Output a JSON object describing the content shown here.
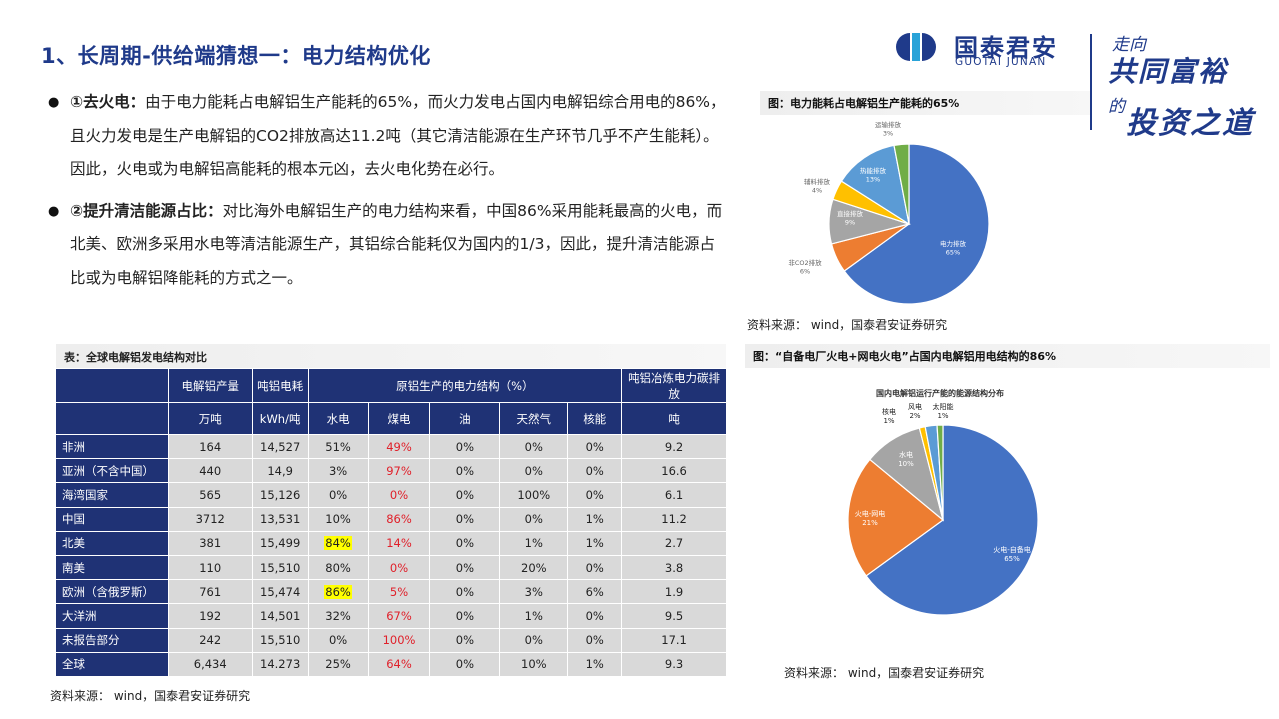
{
  "page": {
    "title": "1、长周期-供给端猜想一：电力结构优化"
  },
  "logo": {
    "name_cn": "国泰君安",
    "name_en": "GUOTAI JUNAN",
    "slogan_1": "走向",
    "slogan_2": "共同富裕",
    "slogan_3": "的",
    "slogan_4": "投资之道"
  },
  "bullets": [
    {
      "head": "①去火电：",
      "text": "由于电力能耗占电解铝生产能耗的65%，而火力发电占国内电解铝综合用电的86%，且火力发电是生产电解铝的CO2排放高达11.2吨（其它清洁能源在生产环节几乎不产生能耗）。因此，火电或为电解铝高能耗的根本元凶，去火电化势在必行。"
    },
    {
      "head": "②提升清洁能源占比：",
      "text": "对比海外电解铝生产的电力结构来看，中国86%采用能耗最高的火电，而北美、欧洲多采用水电等清洁能源生产，其铝综合能耗仅为国内的1/3，因此，提升清洁能源占比或为电解铝降能耗的方式之一。"
    }
  ],
  "figure1": {
    "caption": "图：电力能耗占电解铝生产能耗的65%",
    "source": "资料来源： wind，国泰君安证券研究"
  },
  "figure2": {
    "caption": "图：“自备电厂火电+网电火电”占国内电解铝用电结构的86%",
    "source": "资料来源： wind，国泰君安证券研究"
  },
  "table": {
    "caption": "表：全球电解铝发电结构对比",
    "source": "资料来源： wind，国泰君安证券研究",
    "headers": {
      "output": "电解铝产量",
      "consumption": "吨铝电耗",
      "structure": "原铝生产的电力结构（%）",
      "carbon": "吨铝冶炼电力碳排放",
      "unit_output": "万吨",
      "unit_consumption": "kWh/吨",
      "hydro": "水电",
      "coal": "煤电",
      "oil": "油",
      "gas": "天然气",
      "nuclear": "核能",
      "unit_carbon": "吨"
    },
    "rows": [
      {
        "region": "非洲",
        "output": "164",
        "consumption": "14,527",
        "hydro": "51%",
        "coal": "49%",
        "oil": "0%",
        "gas": "0%",
        "nuclear": "0%",
        "carbon": "9.2"
      },
      {
        "region": "亚洲（不含中国）",
        "output": "440",
        "consumption": "14,9",
        "hydro": "3%",
        "coal": "97%",
        "oil": "0%",
        "gas": "0%",
        "nuclear": "0%",
        "carbon": "16.6"
      },
      {
        "region": "海湾国家",
        "output": "565",
        "consumption": "15,126",
        "hydro": "0%",
        "coal": "0%",
        "oil": "0%",
        "gas": "100%",
        "nuclear": "0%",
        "carbon": "6.1"
      },
      {
        "region": "中国",
        "output": "3712",
        "consumption": "13,531",
        "hydro": "10%",
        "coal": "86%",
        "oil": "0%",
        "gas": "0%",
        "nuclear": "1%",
        "carbon": "11.2"
      },
      {
        "region": "北美",
        "output": "381",
        "consumption": "15,499",
        "hydro": "84%",
        "coal": "14%",
        "oil": "0%",
        "gas": "1%",
        "nuclear": "1%",
        "carbon": "2.7"
      },
      {
        "region": "南美",
        "output": "110",
        "consumption": "15,510",
        "hydro": "80%",
        "coal": "0%",
        "oil": "0%",
        "gas": "20%",
        "nuclear": "0%",
        "carbon": "3.8"
      },
      {
        "region": "欧洲（含俄罗斯）",
        "output": "761",
        "consumption": "15,474",
        "hydro": "86%",
        "coal": "5%",
        "oil": "0%",
        "gas": "3%",
        "nuclear": "6%",
        "carbon": "1.9"
      },
      {
        "region": "大洋洲",
        "output": "192",
        "consumption": "14,501",
        "hydro": "32%",
        "coal": "67%",
        "oil": "0%",
        "gas": "1%",
        "nuclear": "0%",
        "carbon": "9.5"
      },
      {
        "region": "未报告部分",
        "output": "242",
        "consumption": "15,510",
        "hydro": "0%",
        "coal": "100%",
        "oil": "0%",
        "gas": "0%",
        "nuclear": "0%",
        "carbon": "17.1"
      },
      {
        "region": "全球",
        "output": "6,434",
        "consumption": "14.273",
        "hydro": "25%",
        "coal": "64%",
        "oil": "0%",
        "gas": "10%",
        "nuclear": "1%",
        "carbon": "9.3"
      }
    ]
  },
  "chart_data": [
    {
      "type": "pie",
      "title": "",
      "labels": [
        "电力排放",
        "非CO2排放",
        "直接排放",
        "辅料排放",
        "热能排放",
        "运输排放"
      ],
      "values": [
        65,
        6,
        9,
        4,
        13,
        3
      ],
      "value_labels": [
        "65%",
        "6%",
        "9%",
        "4%",
        "13%",
        "3%"
      ],
      "colors": [
        "#4472c4",
        "#ed7d31",
        "#a5a5a5",
        "#ffc000",
        "#5b9bd5",
        "#70ad47"
      ]
    },
    {
      "type": "pie",
      "title": "国内电解铝运行产能的能源结构分布",
      "labels": [
        "火电-自备电",
        "火电-网电",
        "水电",
        "核电",
        "风电",
        "太阳能"
      ],
      "values": [
        65,
        21,
        10,
        1,
        2,
        1
      ],
      "value_labels": [
        "65%",
        "21%",
        "10%",
        "1%",
        "2%",
        "1%"
      ],
      "colors": [
        "#4472c4",
        "#ed7d31",
        "#a5a5a5",
        "#ffc000",
        "#5b9bd5",
        "#70ad47"
      ]
    }
  ]
}
